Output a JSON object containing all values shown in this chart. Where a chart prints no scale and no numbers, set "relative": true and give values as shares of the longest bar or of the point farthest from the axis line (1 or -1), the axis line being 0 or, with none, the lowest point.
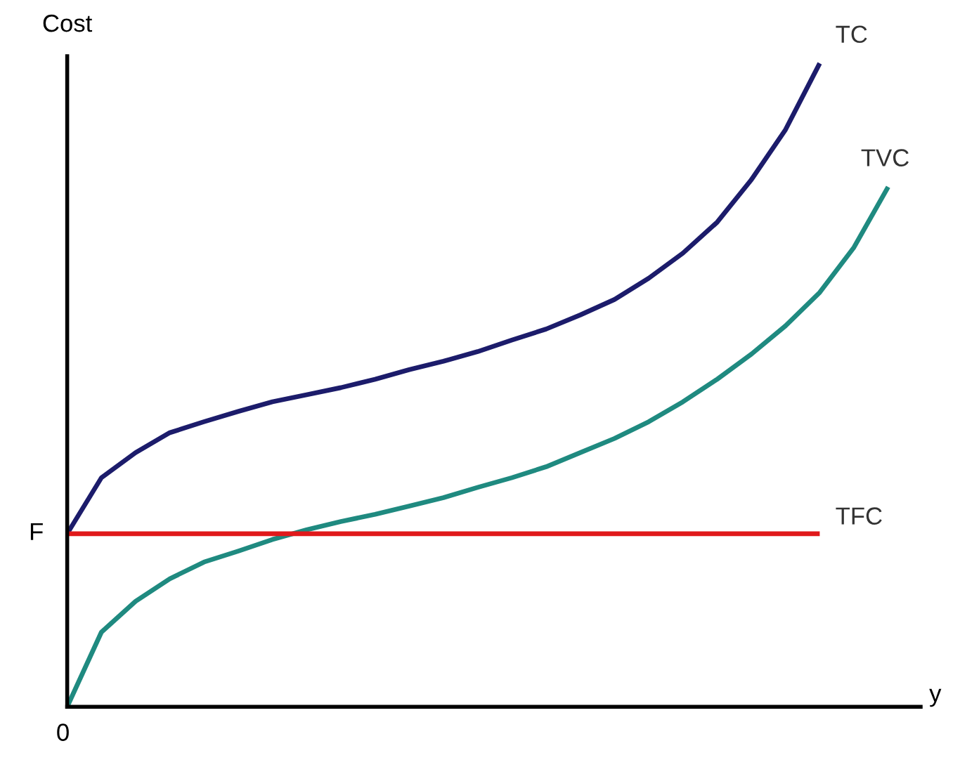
{
  "chart_data": {
    "type": "line",
    "relative": true,
    "ylabel": "Cost",
    "xlabel": "y",
    "categories": [
      null,
      null,
      null,
      null,
      null,
      null,
      null,
      null,
      null,
      null,
      null,
      null,
      null,
      null,
      null,
      null,
      null,
      null,
      null,
      null,
      null,
      null,
      null,
      null,
      null
    ],
    "series": [
      {
        "name": "TC",
        "color": "#1c1c6b",
        "values": [
          0.269,
          0.356,
          0.395,
          0.426,
          0.443,
          0.459,
          0.474,
          0.485,
          0.496,
          0.509,
          0.524,
          0.537,
          0.552,
          0.57,
          0.587,
          0.609,
          0.633,
          0.666,
          0.705,
          0.753,
          0.819,
          0.897,
          1,
          null,
          null
        ]
      },
      {
        "name": "TVC",
        "color": "#1f8a80",
        "values": [
          0,
          0.116,
          0.164,
          0.199,
          0.225,
          0.242,
          0.26,
          0.275,
          0.288,
          0.299,
          0.312,
          0.325,
          0.341,
          0.356,
          0.373,
          0.395,
          0.417,
          0.443,
          0.474,
          0.509,
          0.548,
          0.592,
          0.644,
          0.714,
          0.808
        ]
      },
      {
        "name": "TFC",
        "color": "#e0191b",
        "values": [
          0.269,
          0.269,
          0.269,
          0.269,
          0.269,
          0.269,
          0.269,
          0.269,
          0.269,
          0.269,
          0.269,
          0.269,
          0.269,
          0.269,
          0.269,
          0.269,
          0.269,
          0.269,
          0.269,
          0.269,
          0.269,
          0.269,
          0.269,
          null,
          null
        ]
      }
    ],
    "annotations": [
      "0",
      "F"
    ],
    "legend": false,
    "marker": "none",
    "line_style": "solid"
  }
}
